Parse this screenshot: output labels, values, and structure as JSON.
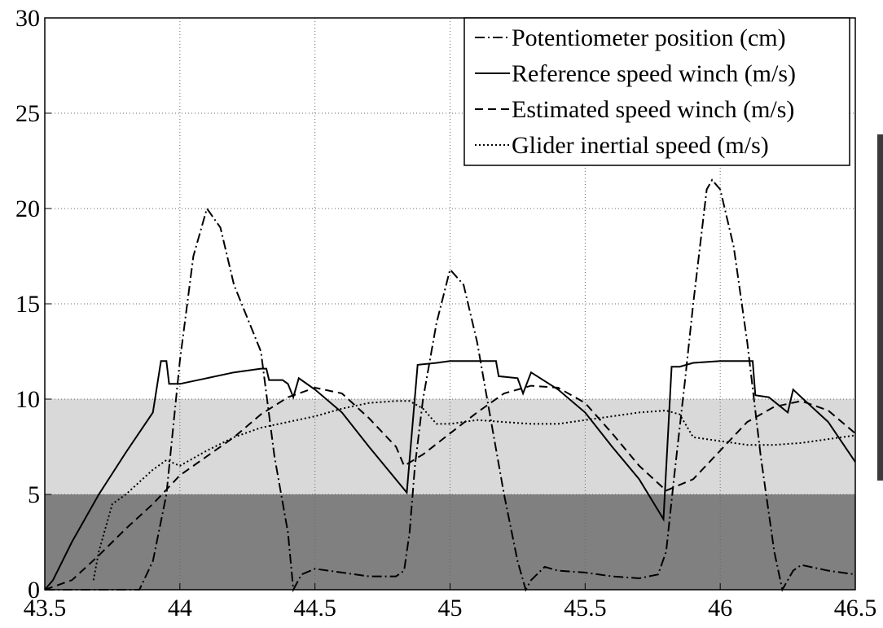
{
  "chart_data": {
    "type": "line",
    "xlim": [
      43.5,
      46.5
    ],
    "xticks": [
      43.5,
      44,
      44.5,
      45,
      45.5,
      46,
      46.5
    ],
    "ylim": [
      0,
      30
    ],
    "yticks": [
      0,
      5,
      10,
      15,
      20,
      25,
      30
    ],
    "grid": true,
    "legend": "upper right",
    "bands": [
      {
        "from": 0,
        "to": 5,
        "color": "#808080"
      },
      {
        "from": 5,
        "to": 10,
        "color": "#d9d9d9"
      }
    ],
    "series": [
      {
        "name": "Potentiometer position (cm)",
        "color": "#000000",
        "style": "dash-dot",
        "x": [
          43.5,
          43.85,
          43.9,
          43.95,
          44.0,
          44.05,
          44.1,
          44.15,
          44.2,
          44.3,
          44.35,
          44.4,
          44.42,
          44.45,
          44.5,
          44.6,
          44.7,
          44.8,
          44.83,
          44.85,
          44.87,
          44.9,
          44.95,
          45.0,
          45.05,
          45.1,
          45.15,
          45.2,
          45.25,
          45.28,
          45.3,
          45.35,
          45.4,
          45.5,
          45.6,
          45.7,
          45.77,
          45.8,
          45.83,
          45.87,
          45.9,
          45.95,
          45.97,
          46.0,
          46.05,
          46.1,
          46.15,
          46.2,
          46.23,
          46.27,
          46.3,
          46.4,
          46.5
        ],
        "values": [
          0,
          0,
          1.5,
          5,
          12,
          17.5,
          20,
          19,
          16,
          12.5,
          7,
          3,
          0,
          0.8,
          1.1,
          0.9,
          0.7,
          0.7,
          1,
          3,
          6.5,
          10,
          14,
          16.8,
          16,
          13,
          9,
          5,
          1.5,
          0,
          0.5,
          1.2,
          1,
          0.9,
          0.7,
          0.6,
          0.8,
          2,
          6,
          11,
          15,
          21,
          21.5,
          21,
          18,
          13,
          7,
          2,
          0,
          1,
          1.3,
          1,
          0.8
        ]
      },
      {
        "name": "Reference speed winch (m/s)",
        "color": "#000000",
        "style": "solid",
        "x": [
          43.5,
          43.53,
          43.6,
          43.7,
          43.8,
          43.9,
          43.93,
          43.95,
          43.96,
          44.0,
          44.1,
          44.2,
          44.3,
          44.32,
          44.33,
          44.38,
          44.4,
          44.42,
          44.44,
          44.5,
          44.6,
          44.7,
          44.84,
          44.88,
          44.95,
          45.0,
          45.17,
          45.18,
          45.25,
          45.27,
          45.3,
          45.4,
          45.5,
          45.6,
          45.7,
          45.79,
          45.82,
          45.85,
          45.9,
          46.0,
          46.12,
          46.13,
          46.18,
          46.25,
          46.27,
          46.3,
          46.4,
          46.5
        ],
        "values": [
          0,
          0.5,
          2.5,
          5,
          7.2,
          9.3,
          12,
          12,
          10.8,
          10.8,
          11.1,
          11.4,
          11.6,
          11.6,
          11,
          11,
          10.8,
          10.1,
          11.1,
          10.5,
          9.3,
          7.5,
          5.1,
          11.8,
          11.9,
          12,
          12,
          11.2,
          11.1,
          10.3,
          11.4,
          10.5,
          9.3,
          7.5,
          5.8,
          3.7,
          11.7,
          11.7,
          11.9,
          12,
          12,
          10.2,
          10.1,
          9.3,
          10.5,
          10.1,
          8.8,
          6.7
        ]
      },
      {
        "name": "Estimated speed winch (m/s)",
        "color": "#000000",
        "style": "dashed",
        "x": [
          43.5,
          43.6,
          43.7,
          43.8,
          43.9,
          44.0,
          44.1,
          44.2,
          44.3,
          44.4,
          44.5,
          44.6,
          44.7,
          44.8,
          44.83,
          44.9,
          45.0,
          45.1,
          45.2,
          45.3,
          45.4,
          45.5,
          45.6,
          45.7,
          45.8,
          45.9,
          46.0,
          46.1,
          46.2,
          46.3,
          46.4,
          46.5
        ],
        "values": [
          0,
          0.5,
          1.8,
          3.2,
          4.5,
          6,
          7,
          8,
          9.2,
          10.1,
          10.6,
          10.3,
          9,
          7.5,
          6.5,
          7.1,
          8.2,
          9.3,
          10.3,
          10.7,
          10.6,
          9.8,
          8.2,
          6.5,
          5.2,
          5.8,
          7.3,
          8.8,
          9.6,
          9.9,
          9.4,
          8.2
        ]
      },
      {
        "name": "Glider inertial speed (m/s)",
        "color": "#000000",
        "style": "dotted",
        "x": [
          43.68,
          43.7,
          43.75,
          43.8,
          43.9,
          43.95,
          44.0,
          44.1,
          44.2,
          44.3,
          44.4,
          44.5,
          44.6,
          44.7,
          44.8,
          44.85,
          44.9,
          44.95,
          45.0,
          45.1,
          45.2,
          45.3,
          45.4,
          45.5,
          45.6,
          45.7,
          45.8,
          45.85,
          45.9,
          46.0,
          46.1,
          46.2,
          46.3,
          46.4,
          46.5
        ],
        "values": [
          0.5,
          2,
          4.5,
          5,
          6.3,
          6.8,
          6.5,
          7.3,
          8,
          8.5,
          8.8,
          9.1,
          9.5,
          9.8,
          9.9,
          9.9,
          9.5,
          8.7,
          8.7,
          8.9,
          8.8,
          8.7,
          8.7,
          8.9,
          9.1,
          9.3,
          9.4,
          9.2,
          8,
          7.8,
          7.6,
          7.6,
          7.7,
          7.9,
          8.1
        ]
      }
    ]
  }
}
